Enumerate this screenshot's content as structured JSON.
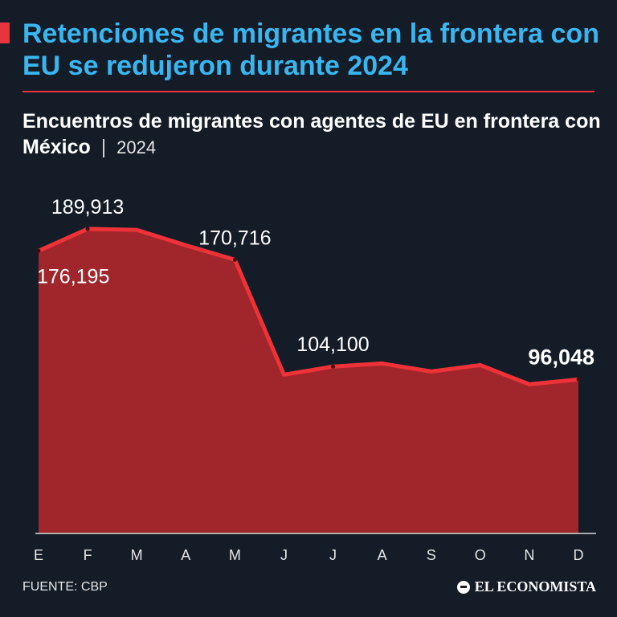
{
  "header": {
    "title": "Retenciones de migrantes en la frontera con EU se redujeron durante 2024",
    "subtitle_main": "Encuentros de migrantes con agentes de EU en frontera con México",
    "subtitle_separator": "|",
    "subtitle_year": "2024"
  },
  "footer": {
    "source": "FUENTE: CBP",
    "brand": "EL ECONOMISTA"
  },
  "colors": {
    "background": "#141c28",
    "title": "#39b6f0",
    "accent": "#e8343a",
    "area_fill": "#a1262b",
    "line": "#ee3237"
  },
  "chart_data": {
    "type": "area",
    "title": "Encuentros de migrantes con agentes de EU en frontera con México",
    "xlabel": "",
    "ylabel": "",
    "categories": [
      "E",
      "F",
      "M",
      "A",
      "M",
      "J",
      "J",
      "A",
      "S",
      "O",
      "N",
      "D"
    ],
    "series": [
      {
        "name": "Encuentros",
        "values": [
          176195,
          189913,
          189300,
          179700,
          170716,
          99000,
          104100,
          106000,
          101000,
          105000,
          93000,
          96048
        ]
      }
    ],
    "ylim": [
      0,
      250000
    ],
    "grid": false,
    "legend": "none",
    "data_labels": [
      {
        "index": 0,
        "text": "176,195",
        "bold": false,
        "position": "below"
      },
      {
        "index": 1,
        "text": "189,913",
        "bold": false,
        "position": "above"
      },
      {
        "index": 4,
        "text": "170,716",
        "bold": false,
        "position": "above"
      },
      {
        "index": 6,
        "text": "104,100",
        "bold": false,
        "position": "above"
      },
      {
        "index": 11,
        "text": "96,048",
        "bold": true,
        "position": "above"
      }
    ]
  }
}
